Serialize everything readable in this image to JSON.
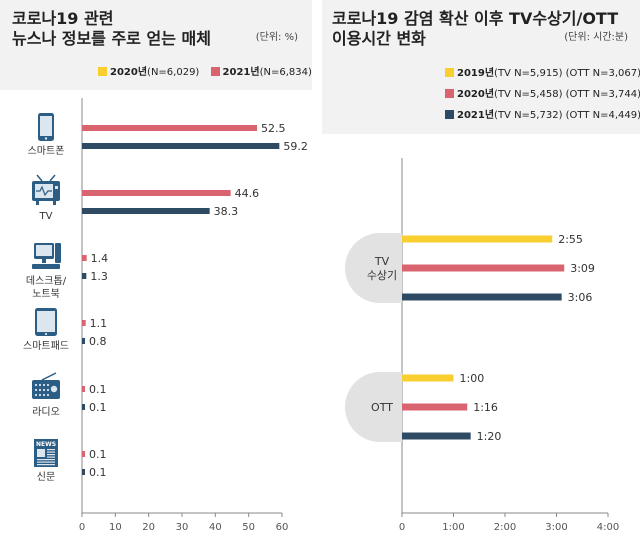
{
  "colors": {
    "y2019": "#f9cf30",
    "y2020": "#d9636f",
    "y2021": "#2f4a63",
    "panel_bg": "#f2f2f2",
    "pill_bg": "#e2e2e2"
  },
  "left": {
    "title_line1": "코로나19 관련",
    "title_line2": "뉴스나 정보를 주로 얻는 매체",
    "unit": "(단위: %)",
    "legend": [
      {
        "year": "2020년",
        "n": "(N=6,029)",
        "color_key": "y2020"
      },
      {
        "year": "2021년",
        "n": "(N=6,834)",
        "color_key": "y2021"
      }
    ]
  },
  "right": {
    "title_line1": "코로나19 감염 확산 이후 TV수상기/OTT",
    "title_line2": "이용시간 변화",
    "unit": "(단위: 시간:분)",
    "legend": [
      {
        "year": "2019년",
        "n": "(TV N=5,915) (OTT N=3,067)",
        "color_key": "y2019"
      },
      {
        "year": "2020년",
        "n": "(TV N=5,458) (OTT N=3,744)",
        "color_key": "y2020"
      },
      {
        "year": "2021년",
        "n": "(TV N=5,732) (OTT N=4,449)",
        "color_key": "y2021"
      }
    ]
  },
  "chart_data": [
    {
      "type": "bar",
      "orientation": "horizontal",
      "categories": [
        "스마트폰",
        "TV",
        "데스크톱/노트북",
        "스마트패드",
        "라디오",
        "신문"
      ],
      "category_labels": [
        [
          "스마트폰"
        ],
        [
          "TV"
        ],
        [
          "데스크톱/",
          "노트북"
        ],
        [
          "스마트패드"
        ],
        [
          "라디오"
        ],
        [
          "신문"
        ]
      ],
      "category_icons": [
        "smartphone-icon",
        "tv-icon",
        "desktop-icon",
        "tablet-icon",
        "radio-icon",
        "newspaper-icon"
      ],
      "series": [
        {
          "name": "2020년",
          "color_key": "y2020",
          "values": [
            52.5,
            44.6,
            1.4,
            1.1,
            0.1,
            0.1
          ],
          "labels": [
            "52.5",
            "44.6",
            "1.4",
            "1.1",
            "0.1",
            "0.1"
          ]
        },
        {
          "name": "2021년",
          "color_key": "y2021",
          "values": [
            59.2,
            38.3,
            1.3,
            0.8,
            0.1,
            0.1
          ],
          "labels": [
            "59.2",
            "38.3",
            "1.3",
            "0.8",
            "0.1",
            "0.1"
          ]
        }
      ],
      "xlim": [
        0,
        60
      ],
      "xticks": [
        "0",
        "10",
        "20",
        "30",
        "40",
        "50",
        "60"
      ]
    },
    {
      "type": "bar",
      "orientation": "horizontal",
      "categories": [
        "TV 수상기",
        "OTT"
      ],
      "category_labels": [
        [
          "TV",
          "수상기"
        ],
        [
          "OTT"
        ]
      ],
      "series": [
        {
          "name": "2019년",
          "color_key": "y2019",
          "values": [
            175,
            60
          ],
          "labels": [
            "2:55",
            "1:00"
          ]
        },
        {
          "name": "2020년",
          "color_key": "y2020",
          "values": [
            189,
            76
          ],
          "labels": [
            "3:09",
            "1:16"
          ]
        },
        {
          "name": "2021년",
          "color_key": "y2021",
          "values": [
            186,
            80
          ],
          "labels": [
            "3:06",
            "1:20"
          ]
        }
      ],
      "value_unit": "minutes",
      "xlim": [
        0,
        240
      ],
      "xticks": [
        "0",
        "1:00",
        "2:00",
        "3:00",
        "4:00"
      ]
    }
  ]
}
